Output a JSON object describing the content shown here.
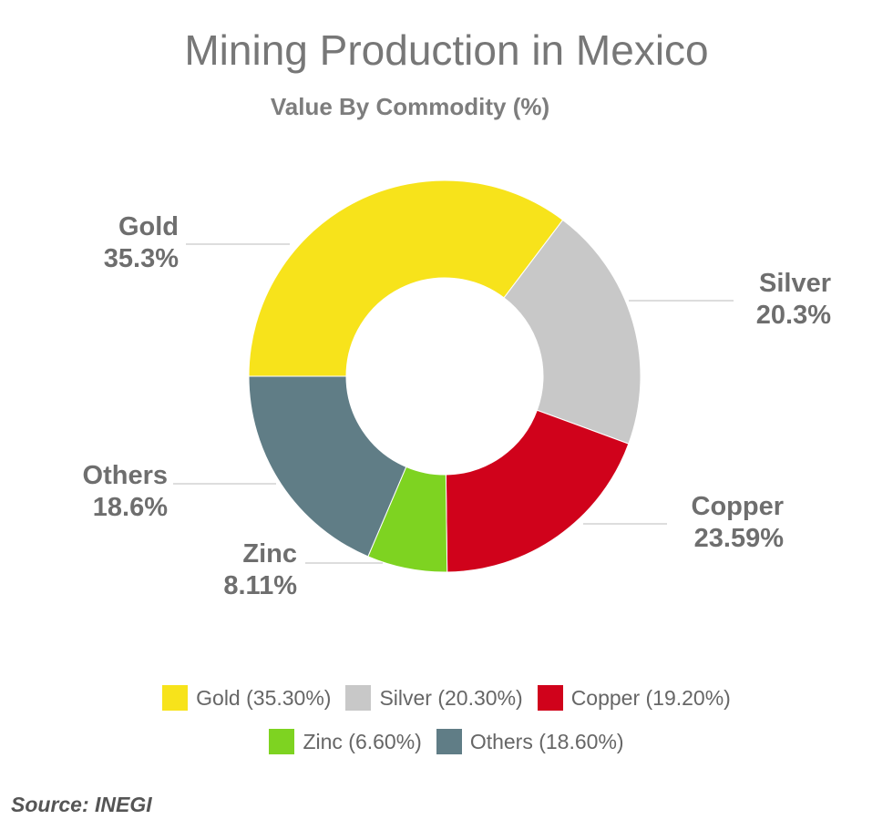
{
  "chart_data": {
    "type": "pie",
    "title": "Mining Production in Mexico",
    "subtitle": "Value By Commodity (%)",
    "slices": [
      {
        "label": "Gold",
        "callout_value": "35.3%",
        "legend": "Gold (35.30%)",
        "value": 35.3,
        "color": "#f7e31b"
      },
      {
        "label": "Silver",
        "callout_value": "20.3%",
        "legend": "Silver (20.30%)",
        "value": 20.3,
        "color": "#c8c8c8"
      },
      {
        "label": "Copper",
        "callout_value": "23.59%",
        "legend": "Copper (19.20%)",
        "value": 19.2,
        "color": "#d0021b"
      },
      {
        "label": "Zinc",
        "callout_value": "8.11%",
        "legend": "Zinc (6.60%)",
        "value": 6.6,
        "color": "#7ed321"
      },
      {
        "label": "Others",
        "callout_value": "18.6%",
        "legend": "Others (18.60%)",
        "value": 18.6,
        "color": "#607d86"
      }
    ],
    "legend_placement": "bottom"
  },
  "source": "Source: INEGI"
}
